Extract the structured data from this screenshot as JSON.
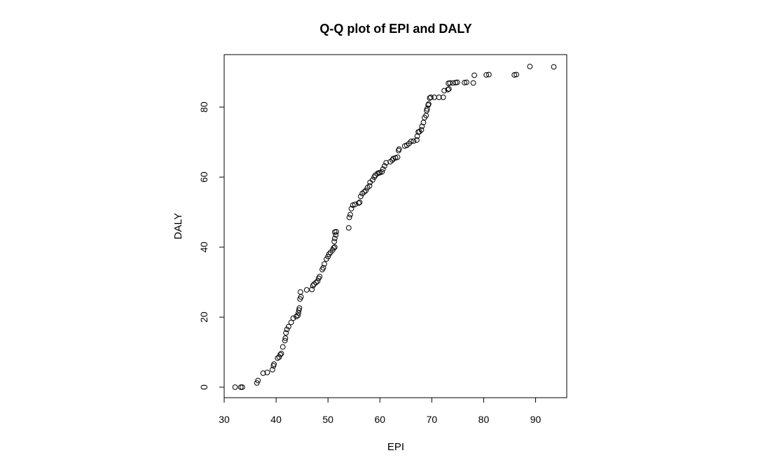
{
  "chart_data": {
    "type": "scatter",
    "title": "Q-Q plot of EPI and DALY",
    "xlabel": "EPI",
    "ylabel": "DALY",
    "xlim": [
      30,
      96
    ],
    "ylim": [
      -3,
      95
    ],
    "x_ticks": [
      30,
      40,
      50,
      60,
      70,
      80,
      90
    ],
    "y_ticks": [
      0,
      20,
      40,
      60,
      80
    ],
    "grid": false,
    "legend": "none",
    "marker": "open-circle",
    "points": [
      [
        32.1,
        0.0
      ],
      [
        33.2,
        0.0
      ],
      [
        33.5,
        0.0
      ],
      [
        36.3,
        1.2
      ],
      [
        36.5,
        1.9
      ],
      [
        37.5,
        4.0
      ],
      [
        38.3,
        4.2
      ],
      [
        39.3,
        5.0
      ],
      [
        39.5,
        6.1
      ],
      [
        39.6,
        6.6
      ],
      [
        40.3,
        8.3
      ],
      [
        40.6,
        8.6
      ],
      [
        40.8,
        9.3
      ],
      [
        41.0,
        9.6
      ],
      [
        41.3,
        11.5
      ],
      [
        41.7,
        13.3
      ],
      [
        41.8,
        14.0
      ],
      [
        41.9,
        15.5
      ],
      [
        42.1,
        16.5
      ],
      [
        42.4,
        17.3
      ],
      [
        42.9,
        18.5
      ],
      [
        43.3,
        19.7
      ],
      [
        43.9,
        20.2
      ],
      [
        44.2,
        20.5
      ],
      [
        44.3,
        21.2
      ],
      [
        44.4,
        22.0
      ],
      [
        44.5,
        22.6
      ],
      [
        44.6,
        25.2
      ],
      [
        44.8,
        25.8
      ],
      [
        44.7,
        27.2
      ],
      [
        45.9,
        27.8
      ],
      [
        46.9,
        27.9
      ],
      [
        47.1,
        29.0
      ],
      [
        47.3,
        29.4
      ],
      [
        47.7,
        29.9
      ],
      [
        48.0,
        30.3
      ],
      [
        48.2,
        31.1
      ],
      [
        48.4,
        31.6
      ],
      [
        48.9,
        33.6
      ],
      [
        49.1,
        34.1
      ],
      [
        49.3,
        35.2
      ],
      [
        49.7,
        36.6
      ],
      [
        50.0,
        37.3
      ],
      [
        50.2,
        38.0
      ],
      [
        50.5,
        38.5
      ],
      [
        50.9,
        39.2
      ],
      [
        51.1,
        39.8
      ],
      [
        51.3,
        40.0
      ],
      [
        51.2,
        41.6
      ],
      [
        51.3,
        42.5
      ],
      [
        51.5,
        43.5
      ],
      [
        51.3,
        44.3
      ],
      [
        51.6,
        44.4
      ],
      [
        54.0,
        45.5
      ],
      [
        54.1,
        48.5
      ],
      [
        54.3,
        49.3
      ],
      [
        54.5,
        51.0
      ],
      [
        54.8,
        52.0
      ],
      [
        55.2,
        52.2
      ],
      [
        55.9,
        52.6
      ],
      [
        56.1,
        52.8
      ],
      [
        56.3,
        54.5
      ],
      [
        56.6,
        55.3
      ],
      [
        57.0,
        55.8
      ],
      [
        57.3,
        56.2
      ],
      [
        57.6,
        57.0
      ],
      [
        58.0,
        57.5
      ],
      [
        58.1,
        58.5
      ],
      [
        58.6,
        59.2
      ],
      [
        58.9,
        60.0
      ],
      [
        59.1,
        60.5
      ],
      [
        59.5,
        61.0
      ],
      [
        59.8,
        61.2
      ],
      [
        60.0,
        61.3
      ],
      [
        60.4,
        61.5
      ],
      [
        60.6,
        62.3
      ],
      [
        60.9,
        63.2
      ],
      [
        61.2,
        64.1
      ],
      [
        62.0,
        64.4
      ],
      [
        62.4,
        64.9
      ],
      [
        62.6,
        65.3
      ],
      [
        63.0,
        65.5
      ],
      [
        63.4,
        65.7
      ],
      [
        63.6,
        67.6
      ],
      [
        63.7,
        68.0
      ],
      [
        64.8,
        68.9
      ],
      [
        65.2,
        69.1
      ],
      [
        65.6,
        69.6
      ],
      [
        66.0,
        70.2
      ],
      [
        66.5,
        70.3
      ],
      [
        67.1,
        70.6
      ],
      [
        67.2,
        71.7
      ],
      [
        67.4,
        72.9
      ],
      [
        67.6,
        73.0
      ],
      [
        68.0,
        73.5
      ],
      [
        68.1,
        74.5
      ],
      [
        68.4,
        75.6
      ],
      [
        68.6,
        77.0
      ],
      [
        68.9,
        77.6
      ],
      [
        69.0,
        79.0
      ],
      [
        69.1,
        79.5
      ],
      [
        69.3,
        80.6
      ],
      [
        69.4,
        80.9
      ],
      [
        69.6,
        82.6
      ],
      [
        69.8,
        82.8
      ],
      [
        70.5,
        82.8
      ],
      [
        71.4,
        82.8
      ],
      [
        72.2,
        82.8
      ],
      [
        72.4,
        84.7
      ],
      [
        73.1,
        85.0
      ],
      [
        73.3,
        85.2
      ],
      [
        73.2,
        86.8
      ],
      [
        73.5,
        86.9
      ],
      [
        74.1,
        86.9
      ],
      [
        74.6,
        87.0
      ],
      [
        74.9,
        87.1
      ],
      [
        76.3,
        87.0
      ],
      [
        76.7,
        87.1
      ],
      [
        78.0,
        86.9
      ],
      [
        78.2,
        89.1
      ],
      [
        80.5,
        89.2
      ],
      [
        81.0,
        89.3
      ],
      [
        85.9,
        89.2
      ],
      [
        86.3,
        89.3
      ],
      [
        88.9,
        91.6
      ],
      [
        93.5,
        91.5
      ]
    ]
  }
}
